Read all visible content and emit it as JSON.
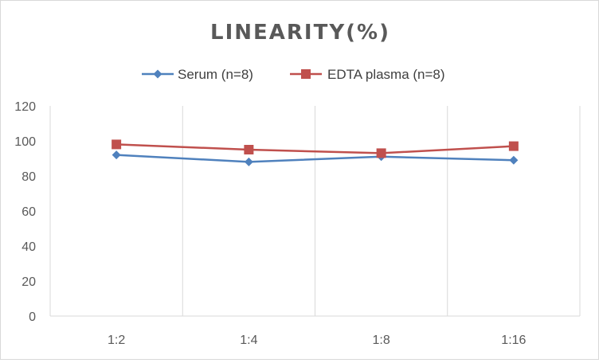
{
  "chart_data": {
    "type": "line",
    "title": "LINEARITY(%)",
    "xlabel": "",
    "ylabel": "",
    "categories": [
      "1:2",
      "1:4",
      "1:8",
      "1:16"
    ],
    "ylim": [
      0,
      120
    ],
    "yticks": [
      0,
      20,
      40,
      60,
      80,
      100,
      120
    ],
    "grid": "vertical",
    "legend_position": "top",
    "series": [
      {
        "name": "Serum (n=8)",
        "values": [
          92,
          88,
          91,
          89
        ],
        "color": "#4f81bd",
        "marker": "diamond"
      },
      {
        "name": "EDTA plasma (n=8)",
        "values": [
          98,
          95,
          93,
          97
        ],
        "color": "#c0504d",
        "marker": "square"
      }
    ]
  }
}
